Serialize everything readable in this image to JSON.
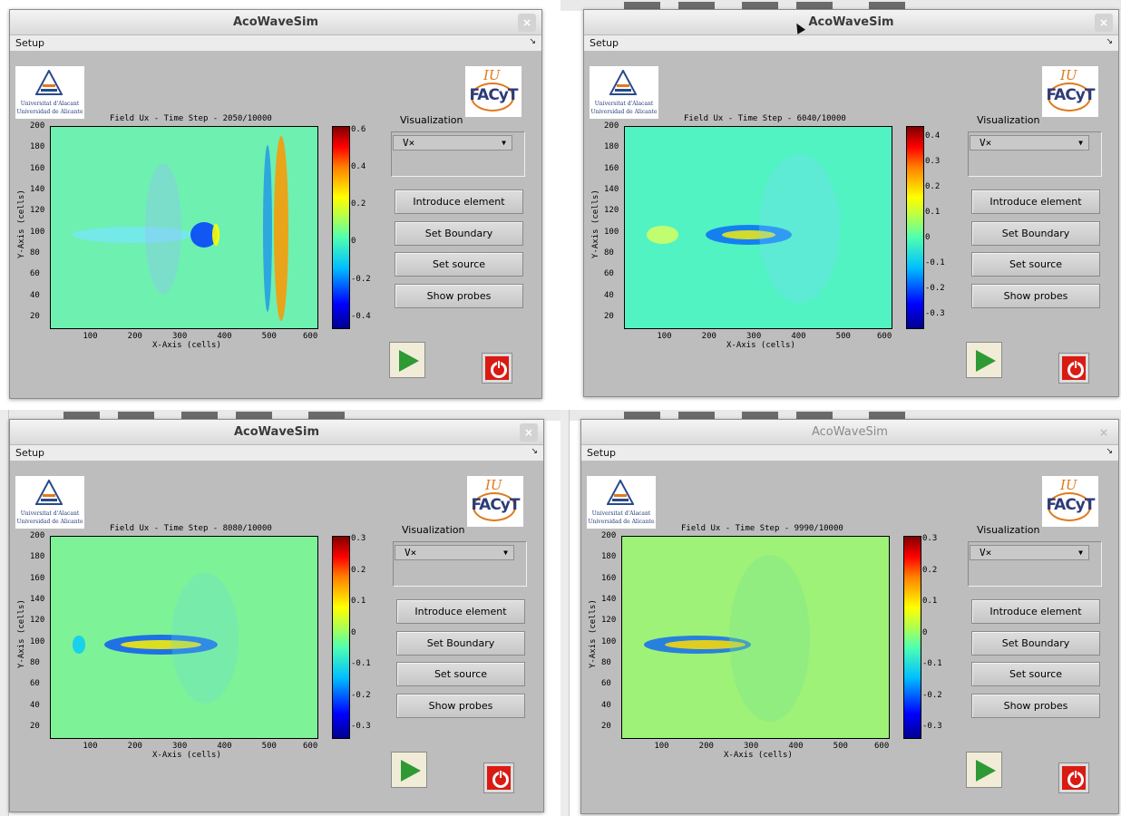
{
  "app": {
    "window_title": "AcoWaveSim",
    "menu_setup": "Setup",
    "menu_arrow": "↘",
    "close_glyph": "×"
  },
  "logos": {
    "ua_line1": "Universitat d'Alacant",
    "ua_line2": "Universidad de Alicante",
    "facyt_iu": "IU",
    "facyt_word": "FACyT"
  },
  "panel": {
    "visualization_label": "Visualization",
    "visualization_selected": "V×",
    "dropdown_glyph": "▼",
    "buttons": {
      "introduce_element": "Introduce element",
      "set_boundary": "Set Boundary",
      "set_source": "Set source",
      "show_probes": "Show probes"
    }
  },
  "axes": {
    "xlabel": "X-Axis (cells)",
    "ylabel": "Y-Axis (cells)",
    "x_ticks": [
      "100",
      "200",
      "300",
      "400",
      "500",
      "600"
    ],
    "y_ticks": [
      "200",
      "180",
      "160",
      "140",
      "120",
      "100",
      "80",
      "60",
      "40",
      "20"
    ]
  },
  "snapshots": [
    {
      "title": "Field Ux - Time Step - 2050/10000",
      "time_step": 2050,
      "total_steps": 10000,
      "colorbar_ticks": [
        "0.6",
        "0.4",
        "0.2",
        "0",
        "-0.2",
        "-0.4"
      ],
      "colorbar_range": [
        -0.47,
        0.62
      ]
    },
    {
      "title": "Field Ux - Time Step - 6040/10000",
      "time_step": 6040,
      "total_steps": 10000,
      "colorbar_ticks": [
        "0.4",
        "0.3",
        "0.2",
        "0.1",
        "0",
        "-0.1",
        "-0.2",
        "-0.3"
      ],
      "colorbar_range": [
        -0.36,
        0.44
      ]
    },
    {
      "title": "Field Ux - Time Step - 8080/10000",
      "time_step": 8080,
      "total_steps": 10000,
      "colorbar_ticks": [
        "0.3",
        "0.2",
        "0.1",
        "0",
        "-0.1",
        "-0.2",
        "-0.3"
      ],
      "colorbar_range": [
        -0.34,
        0.31
      ]
    },
    {
      "title": "Field Ux - Time Step - 9990/10000",
      "time_step": 9990,
      "total_steps": 10000,
      "colorbar_ticks": [
        "0.3",
        "0.2",
        "0.1",
        "0",
        "-0.1",
        "-0.2",
        "-0.3"
      ],
      "colorbar_range": [
        -0.34,
        0.31
      ]
    }
  ],
  "chart_data": [
    {
      "type": "heatmap",
      "title": "Field Ux - Time Step - 2050/10000",
      "xlabel": "X-Axis (cells)",
      "ylabel": "Y-Axis (cells)",
      "xlim": [
        0,
        600
      ],
      "ylim": [
        0,
        200
      ],
      "x_ticks": [
        100,
        200,
        300,
        400,
        500,
        600
      ],
      "y_ticks": [
        20,
        40,
        60,
        80,
        100,
        120,
        140,
        160,
        180,
        200
      ],
      "colorbar_ticks": [
        -0.4,
        -0.2,
        0,
        0.2,
        0.4,
        0.6
      ],
      "colormap": "jet"
    },
    {
      "type": "heatmap",
      "title": "Field Ux - Time Step - 6040/10000",
      "xlabel": "X-Axis (cells)",
      "ylabel": "Y-Axis (cells)",
      "xlim": [
        0,
        600
      ],
      "ylim": [
        0,
        200
      ],
      "x_ticks": [
        100,
        200,
        300,
        400,
        500,
        600
      ],
      "y_ticks": [
        20,
        40,
        60,
        80,
        100,
        120,
        140,
        160,
        180,
        200
      ],
      "colorbar_ticks": [
        -0.3,
        -0.2,
        -0.1,
        0,
        0.1,
        0.2,
        0.3,
        0.4
      ],
      "colormap": "jet"
    },
    {
      "type": "heatmap",
      "title": "Field Ux - Time Step - 8080/10000",
      "xlabel": "X-Axis (cells)",
      "ylabel": "Y-Axis (cells)",
      "xlim": [
        0,
        600
      ],
      "ylim": [
        0,
        200
      ],
      "x_ticks": [
        100,
        200,
        300,
        400,
        500,
        600
      ],
      "y_ticks": [
        20,
        40,
        60,
        80,
        100,
        120,
        140,
        160,
        180,
        200
      ],
      "colorbar_ticks": [
        -0.3,
        -0.2,
        -0.1,
        0,
        0.1,
        0.2,
        0.3
      ],
      "colormap": "jet"
    },
    {
      "type": "heatmap",
      "title": "Field Ux - Time Step - 9990/10000",
      "xlabel": "X-Axis (cells)",
      "ylabel": "Y-Axis (cells)",
      "xlim": [
        0,
        600
      ],
      "ylim": [
        0,
        200
      ],
      "x_ticks": [
        100,
        200,
        300,
        400,
        500,
        600
      ],
      "y_ticks": [
        20,
        40,
        60,
        80,
        100,
        120,
        140,
        160,
        180,
        200
      ],
      "colorbar_ticks": [
        -0.3,
        -0.2,
        -0.1,
        0,
        0.1,
        0.2,
        0.3
      ],
      "colormap": "jet"
    }
  ],
  "colors": {
    "window_bg": "#bdbdbd",
    "field_bg_1": "#6ef0b0",
    "field_bg_2": "#52f3c3",
    "field_bg_3": "#7ef296",
    "field_bg_4": "#9ef278",
    "play_green": "#2f9a34",
    "power_red": "#d91b14"
  }
}
